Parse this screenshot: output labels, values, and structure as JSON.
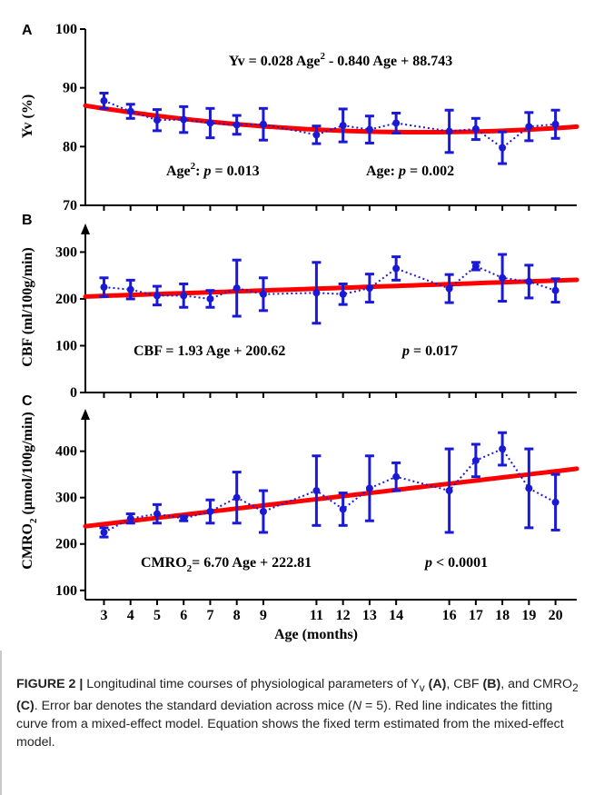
{
  "colors": {
    "fit_line": "#ff0000",
    "data": "#1a1ad6",
    "axis": "#000000"
  },
  "chart_data": [
    {
      "panel": "A",
      "type": "line",
      "ylabel": "Yv (%)",
      "ylim": [
        70,
        100
      ],
      "yticks": [
        70,
        80,
        90,
        100
      ],
      "x": [
        3,
        4,
        5,
        6,
        7,
        8,
        9,
        11,
        12,
        13,
        14,
        16,
        17,
        18,
        19,
        20
      ],
      "series": [
        {
          "values": [
            87.8,
            86.0,
            84.5,
            84.6,
            84.0,
            83.7,
            83.8,
            82.0,
            83.6,
            82.9,
            84.0,
            82.6,
            83.0,
            79.8,
            83.4,
            83.8
          ],
          "errors": [
            1.3,
            1.2,
            1.8,
            2.2,
            2.5,
            1.6,
            2.7,
            1.5,
            2.8,
            2.3,
            1.7,
            3.6,
            1.8,
            2.7,
            2.4,
            2.4
          ]
        }
      ],
      "fit": {
        "kind": "quadratic",
        "a": 0.028,
        "b": -0.84,
        "c": 88.743,
        "xrange": [
          2.3,
          20.8
        ]
      },
      "equation_lead": "Yv = 0.028 Age",
      "equation_exp": "2",
      "equation_rest": " - 0.840 Age + 88.743",
      "annotations": {
        "age2_lead": "Age",
        "age2_exp": "2",
        "age2_rest": ": ",
        "p": "p",
        "age2_value": " = 0.013",
        "age_lead": "Age: ",
        "age_value": " = 0.002"
      }
    },
    {
      "panel": "B",
      "type": "line",
      "ylabel": "CBF (ml/100g/min)",
      "ylim": [
        0,
        330
      ],
      "yticks": [
        0,
        100,
        200,
        300
      ],
      "x": [
        3,
        4,
        5,
        6,
        7,
        8,
        9,
        11,
        12,
        13,
        14,
        16,
        17,
        18,
        19,
        20
      ],
      "series": [
        {
          "values": [
            225,
            220,
            207,
            207,
            200,
            223,
            210,
            213,
            210,
            223,
            265,
            222,
            270,
            245,
            237,
            218
          ],
          "errors": [
            20,
            20,
            20,
            25,
            18,
            60,
            35,
            65,
            22,
            30,
            25,
            30,
            8,
            50,
            35,
            25
          ]
        }
      ],
      "fit": {
        "kind": "linear",
        "slope": 1.93,
        "intercept": 200.62,
        "xrange": [
          2.3,
          20.8
        ]
      },
      "equation": "CBF = 1.93 Age + 200.62",
      "p_label": "p",
      "p_value": " = 0.017"
    },
    {
      "panel": "C",
      "type": "line",
      "ylabel_lead": "CMRO",
      "ylabel_sub": "2",
      "ylabel_rest": " (µmol/100g/min)",
      "ylim": [
        80,
        460
      ],
      "yticks": [
        100,
        200,
        300,
        400
      ],
      "x": [
        3,
        4,
        5,
        6,
        7,
        8,
        9,
        11,
        12,
        13,
        14,
        16,
        17,
        18,
        19,
        20
      ],
      "xlabel": "Age (months)",
      "series": [
        {
          "values": [
            225,
            255,
            265,
            255,
            270,
            300,
            270,
            315,
            275,
            320,
            345,
            315,
            380,
            405,
            320,
            290
          ],
          "errors": [
            10,
            10,
            20,
            5,
            25,
            55,
            45,
            75,
            35,
            70,
            30,
            90,
            35,
            35,
            85,
            60
          ]
        }
      ],
      "fit": {
        "kind": "linear",
        "slope": 6.7,
        "intercept": 222.81,
        "xrange": [
          2.3,
          20.8
        ]
      },
      "equation_lead": "CMRO",
      "equation_sub": "2",
      "equation_rest": "= 6.70 Age + 222.81",
      "p_label": "p",
      "p_value": " < 0.0001"
    }
  ],
  "caption": {
    "label": "FIGURE 2 | ",
    "text1": "Longitudinal time courses of physiological parameters of Y",
    "sub_v": "v",
    "a": "(A)",
    "text2": ", CBF ",
    "b": "(B)",
    "text3": ", and CMRO",
    "sub_2": "2",
    "c": "(C)",
    "text4": ". Error bar denotes the standard deviation across mice (",
    "n": "N",
    "text5": " = 5). Red line indicates the fitting curve from a mixed-effect model. Equation shows the fixed term estimated from the mixed-effect model."
  }
}
